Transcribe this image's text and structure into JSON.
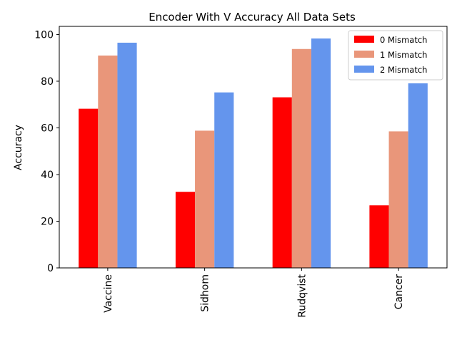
{
  "chart_data": {
    "type": "bar",
    "title": "Encoder With V Accuracy All Data Sets",
    "xlabel": "",
    "ylabel": "Accuracy",
    "categories": [
      "Vaccine",
      "Sidhom",
      "Rudqvist",
      "Cancer"
    ],
    "ylim": [
      0,
      103.5
    ],
    "yticks": [
      0,
      20,
      40,
      60,
      80,
      100
    ],
    "grid": false,
    "legend_position": "top-right",
    "series": [
      {
        "name": "0 Mismatch",
        "color": "#ff0000",
        "values": [
          68.2,
          32.6,
          73.1,
          26.8
        ]
      },
      {
        "name": "1 Mismatch",
        "color": "#e9967a",
        "values": [
          91.0,
          58.8,
          93.8,
          58.5
        ]
      },
      {
        "name": "2 Mismatch",
        "color": "#6495ed",
        "values": [
          96.5,
          75.2,
          98.3,
          79.1
        ]
      }
    ]
  }
}
